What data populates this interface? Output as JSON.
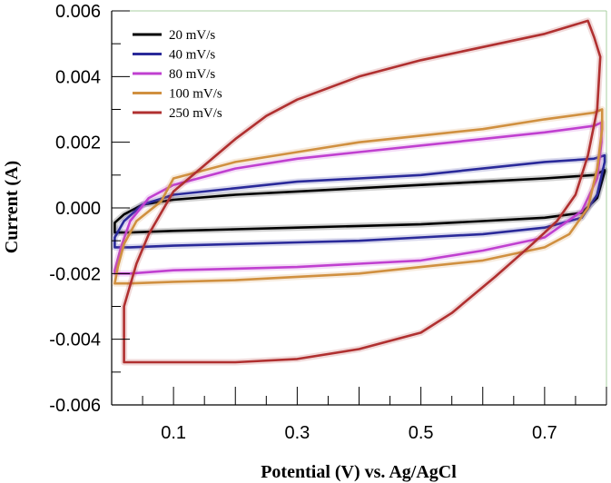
{
  "chart_data": {
    "type": "line",
    "title": "",
    "xlabel": "Potential (V) vs. Ag/AgCl",
    "ylabel": "Current (A)",
    "xlim": [
      0.0,
      0.8
    ],
    "ylim": [
      -0.006,
      0.006
    ],
    "x_ticks": [
      0.1,
      0.3,
      0.5,
      0.7
    ],
    "x_tick_labels": [
      "0.1",
      "0.3",
      "0.5",
      "0.7"
    ],
    "y_ticks": [
      -0.006,
      -0.004,
      -0.002,
      0.0,
      0.002,
      0.004,
      0.006
    ],
    "y_tick_labels": [
      "-0.006",
      "-0.004",
      "-0.002",
      "0.000",
      "0.002",
      "0.004",
      "0.006"
    ],
    "grid": false,
    "legend_position": "top-left",
    "series": [
      {
        "name": "20 mV/s",
        "color": "#000000",
        "points": [
          [
            0.005,
            -0.00045
          ],
          [
            0.02,
            -0.0002
          ],
          [
            0.05,
            0.0001
          ],
          [
            0.1,
            0.00025
          ],
          [
            0.2,
            0.0004
          ],
          [
            0.3,
            0.0005
          ],
          [
            0.4,
            0.0006
          ],
          [
            0.5,
            0.0007
          ],
          [
            0.6,
            0.0008
          ],
          [
            0.7,
            0.0009
          ],
          [
            0.78,
            0.001
          ],
          [
            0.797,
            0.00115
          ],
          [
            0.797,
            0.0011
          ],
          [
            0.785,
            0.0003
          ],
          [
            0.76,
            -0.00015
          ],
          [
            0.7,
            -0.0003
          ],
          [
            0.6,
            -0.0004
          ],
          [
            0.5,
            -0.0005
          ],
          [
            0.4,
            -0.00055
          ],
          [
            0.3,
            -0.0006
          ],
          [
            0.2,
            -0.00065
          ],
          [
            0.1,
            -0.0007
          ],
          [
            0.03,
            -0.00075
          ],
          [
            0.005,
            -0.00075
          ]
        ]
      },
      {
        "name": "40 mV/s",
        "color": "#2a2a9a",
        "points": [
          [
            0.005,
            -0.0009
          ],
          [
            0.02,
            -0.0004
          ],
          [
            0.05,
            0.0001
          ],
          [
            0.1,
            0.0004
          ],
          [
            0.2,
            0.0006
          ],
          [
            0.3,
            0.0008
          ],
          [
            0.4,
            0.0009
          ],
          [
            0.5,
            0.001
          ],
          [
            0.6,
            0.0012
          ],
          [
            0.7,
            0.0014
          ],
          [
            0.78,
            0.0015
          ],
          [
            0.797,
            0.0016
          ],
          [
            0.797,
            0.0014
          ],
          [
            0.785,
            0.0004
          ],
          [
            0.76,
            -0.0003
          ],
          [
            0.7,
            -0.0006
          ],
          [
            0.6,
            -0.0008
          ],
          [
            0.5,
            -0.0009
          ],
          [
            0.4,
            -0.001
          ],
          [
            0.3,
            -0.00105
          ],
          [
            0.2,
            -0.0011
          ],
          [
            0.1,
            -0.00115
          ],
          [
            0.03,
            -0.0012
          ],
          [
            0.005,
            -0.0012
          ]
        ]
      },
      {
        "name": "80 mV/s",
        "color": "#c040d0",
        "points": [
          [
            0.005,
            -0.0019
          ],
          [
            0.015,
            -0.0012
          ],
          [
            0.03,
            -0.0004
          ],
          [
            0.06,
            0.0003
          ],
          [
            0.1,
            0.0007
          ],
          [
            0.2,
            0.0012
          ],
          [
            0.3,
            0.0015
          ],
          [
            0.4,
            0.0017
          ],
          [
            0.5,
            0.0019
          ],
          [
            0.6,
            0.0021
          ],
          [
            0.7,
            0.0023
          ],
          [
            0.78,
            0.0025
          ],
          [
            0.792,
            0.0026
          ],
          [
            0.792,
            0.002
          ],
          [
            0.785,
            0.0009
          ],
          [
            0.76,
            -0.0001
          ],
          [
            0.7,
            -0.0009
          ],
          [
            0.6,
            -0.0013
          ],
          [
            0.5,
            -0.0016
          ],
          [
            0.4,
            -0.0017
          ],
          [
            0.3,
            -0.0018
          ],
          [
            0.2,
            -0.00185
          ],
          [
            0.1,
            -0.0019
          ],
          [
            0.03,
            -0.002
          ],
          [
            0.005,
            -0.002
          ]
        ]
      },
      {
        "name": "100 mV/s",
        "color": "#d09040",
        "points": [
          [
            0.005,
            -0.0023
          ],
          [
            0.01,
            -0.0018
          ],
          [
            0.02,
            -0.0011
          ],
          [
            0.04,
            -0.0004
          ],
          [
            0.08,
            0.0002
          ],
          [
            0.1,
            0.0009
          ],
          [
            0.2,
            0.0014
          ],
          [
            0.3,
            0.0017
          ],
          [
            0.4,
            0.002
          ],
          [
            0.5,
            0.0022
          ],
          [
            0.6,
            0.0024
          ],
          [
            0.7,
            0.0027
          ],
          [
            0.78,
            0.0029
          ],
          [
            0.793,
            0.003
          ],
          [
            0.793,
            0.0024
          ],
          [
            0.785,
            0.0012
          ],
          [
            0.77,
            0.0
          ],
          [
            0.74,
            -0.0008
          ],
          [
            0.7,
            -0.0012
          ],
          [
            0.6,
            -0.0016
          ],
          [
            0.5,
            -0.0018
          ],
          [
            0.4,
            -0.002
          ],
          [
            0.3,
            -0.0021
          ],
          [
            0.2,
            -0.0022
          ],
          [
            0.1,
            -0.00225
          ],
          [
            0.03,
            -0.0023
          ],
          [
            0.005,
            -0.0023
          ]
        ]
      },
      {
        "name": "250 mV/s",
        "color": "#b03030",
        "points": [
          [
            0.02,
            -0.003
          ],
          [
            0.04,
            -0.0017
          ],
          [
            0.06,
            -0.0008
          ],
          [
            0.1,
            0.0005
          ],
          [
            0.15,
            0.0013
          ],
          [
            0.2,
            0.0021
          ],
          [
            0.25,
            0.0028
          ],
          [
            0.3,
            0.0033
          ],
          [
            0.4,
            0.004
          ],
          [
            0.5,
            0.0045
          ],
          [
            0.6,
            0.0049
          ],
          [
            0.7,
            0.0053
          ],
          [
            0.77,
            0.0057
          ],
          [
            0.78,
            0.0052
          ],
          [
            0.79,
            0.0046
          ],
          [
            0.785,
            0.003
          ],
          [
            0.77,
            0.0016
          ],
          [
            0.75,
            0.0004
          ],
          [
            0.72,
            -0.0004
          ],
          [
            0.68,
            -0.0011
          ],
          [
            0.62,
            -0.0021
          ],
          [
            0.55,
            -0.0032
          ],
          [
            0.5,
            -0.0038
          ],
          [
            0.4,
            -0.0043
          ],
          [
            0.3,
            -0.0046
          ],
          [
            0.2,
            -0.0047
          ],
          [
            0.1,
            -0.0047
          ],
          [
            0.02,
            -0.0047
          ]
        ]
      }
    ]
  }
}
